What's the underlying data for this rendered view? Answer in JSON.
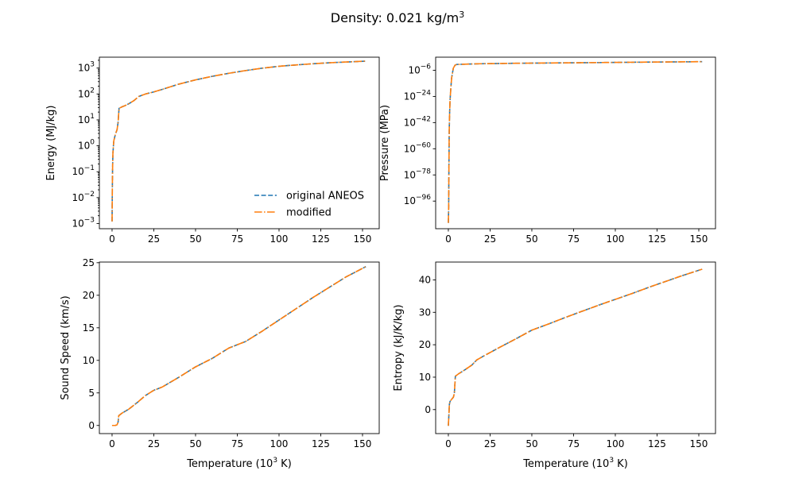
{
  "figure": {
    "title": "Density: 0.021 kg/m",
    "title_sup": "3"
  },
  "colors": {
    "original": "#1f77b4",
    "modified": "#ff7f0e"
  },
  "legend": {
    "placement": "lower-right",
    "entries": [
      "original ANEOS",
      "modified"
    ]
  },
  "chart_data": [
    {
      "type": "line",
      "id": "energy",
      "ylabel": "Energy (MJ/kg)",
      "xlabel": "",
      "yscale": "log",
      "xlim": [
        -7.6,
        160
      ],
      "ylim_log10": [
        -3.2,
        3.42
      ],
      "xticks": [
        0,
        25,
        50,
        75,
        100,
        125,
        150
      ],
      "yticks_exp": [
        -3,
        -2,
        -1,
        0,
        1,
        2,
        3
      ],
      "tick_base": "10",
      "series": [
        {
          "name": "original ANEOS",
          "style": "dashed",
          "x": [
            0.01,
            0.15,
            0.3,
            0.5,
            1.0,
            2.0,
            3.0,
            3.6,
            4.2,
            6,
            8,
            10,
            13,
            16,
            20,
            25,
            30,
            35,
            40,
            50,
            60,
            70,
            80,
            90,
            100,
            110,
            120,
            130,
            140,
            152
          ],
          "y": [
            0.0012,
            0.02,
            0.12,
            0.5,
            1.5,
            2.8,
            4.2,
            8,
            28,
            32,
            36,
            42,
            55,
            80,
            100,
            120,
            150,
            190,
            240,
            350,
            480,
            630,
            800,
            990,
            1170,
            1320,
            1460,
            1600,
            1710,
            1850
          ]
        },
        {
          "name": "modified",
          "style": "dashdot",
          "x": [
            0.01,
            0.15,
            0.3,
            0.5,
            1.0,
            2.0,
            3.0,
            3.6,
            4.2,
            6,
            8,
            10,
            13,
            16,
            20,
            25,
            30,
            35,
            40,
            50,
            60,
            70,
            80,
            90,
            100,
            110,
            120,
            130,
            140,
            152
          ],
          "y": [
            0.0012,
            0.02,
            0.12,
            0.5,
            1.5,
            2.8,
            4.2,
            8,
            28,
            32,
            36,
            42,
            55,
            80,
            100,
            120,
            150,
            190,
            240,
            350,
            480,
            630,
            800,
            990,
            1170,
            1320,
            1460,
            1600,
            1710,
            1850
          ]
        }
      ]
    },
    {
      "type": "line",
      "id": "pressure",
      "ylabel": "Pressure (MPa)",
      "xlabel": "",
      "yscale": "log",
      "xlim": [
        -7.6,
        160
      ],
      "ylim_log10": [
        -115,
        3
      ],
      "xticks": [
        0,
        25,
        50,
        75,
        100,
        125,
        150
      ],
      "yticks_exp": [
        -96,
        -78,
        -60,
        -42,
        -24,
        -6
      ],
      "tick_base": "10",
      "series": [
        {
          "name": "original ANEOS",
          "style": "dashed",
          "x_log": [
            0.0,
            0.2,
            0.3,
            0.5,
            0.7,
            1.0,
            1.5,
            2.0,
            3.0,
            4.0,
            5.0,
            10,
            20,
            40,
            60,
            80,
            100,
            120,
            140,
            152
          ],
          "y_log10": [
            -111,
            -100,
            -80,
            -50,
            -38,
            -27,
            -18,
            -11,
            -4.5,
            -2.5,
            -2.0,
            -1.8,
            -1.5,
            -1.2,
            -1.0,
            -0.8,
            -0.6,
            -0.4,
            -0.2,
            -0.1
          ]
        },
        {
          "name": "modified",
          "style": "dashdot",
          "x_log": [
            0.0,
            0.2,
            0.3,
            0.5,
            0.7,
            1.0,
            1.5,
            2.0,
            3.0,
            4.0,
            5.0,
            10,
            20,
            40,
            60,
            80,
            100,
            120,
            140,
            152
          ],
          "y_log10": [
            -111,
            -100,
            -80,
            -50,
            -38,
            -27,
            -18,
            -11,
            -4.5,
            -2.5,
            -2.0,
            -1.8,
            -1.5,
            -1.2,
            -1.0,
            -0.8,
            -0.6,
            -0.4,
            -0.2,
            -0.1
          ]
        }
      ]
    },
    {
      "type": "line",
      "id": "sound",
      "ylabel": "Sound Speed (km/s)",
      "xlabel": "Temperature (10",
      "xlabel_sup": "3",
      "xlabel_tail": " K)",
      "yscale": "linear",
      "xlim": [
        -7.6,
        160
      ],
      "ylim": [
        -1.25,
        25.1
      ],
      "xticks": [
        0,
        25,
        50,
        75,
        100,
        125,
        150
      ],
      "yticks": [
        0,
        5,
        10,
        15,
        20,
        25
      ],
      "series": [
        {
          "name": "original ANEOS",
          "style": "dashed",
          "x": [
            0,
            1,
            2,
            3,
            3.6,
            4,
            6,
            10,
            15,
            20,
            25,
            30,
            40,
            50,
            60,
            70,
            80,
            90,
            100,
            110,
            120,
            130,
            140,
            152
          ],
          "y": [
            0,
            0,
            0,
            0.1,
            0.5,
            1.5,
            1.9,
            2.5,
            3.5,
            4.6,
            5.4,
            5.9,
            7.4,
            9.0,
            10.3,
            11.9,
            12.9,
            14.5,
            16.2,
            17.9,
            19.6,
            21.2,
            22.8,
            24.4
          ]
        },
        {
          "name": "modified",
          "style": "dashdot",
          "x": [
            0,
            1,
            2,
            3,
            3.6,
            4,
            6,
            10,
            15,
            20,
            25,
            30,
            40,
            50,
            60,
            70,
            80,
            90,
            100,
            110,
            120,
            130,
            140,
            152
          ],
          "y": [
            0,
            0,
            0,
            0.1,
            0.5,
            1.5,
            1.9,
            2.5,
            3.5,
            4.6,
            5.4,
            5.9,
            7.4,
            9.0,
            10.3,
            11.9,
            12.9,
            14.5,
            16.2,
            17.9,
            19.6,
            21.2,
            22.8,
            24.4
          ]
        }
      ]
    },
    {
      "type": "line",
      "id": "entropy",
      "ylabel": "Entropy (kJ/K/kg)",
      "xlabel": "Temperature (10",
      "xlabel_sup": "3",
      "xlabel_tail": " K)",
      "yscale": "linear",
      "xlim": [
        -7.6,
        160
      ],
      "ylim": [
        -7.4,
        45.5
      ],
      "xticks": [
        0,
        25,
        50,
        75,
        100,
        125,
        150
      ],
      "yticks": [
        0,
        10,
        20,
        30,
        40
      ],
      "series": [
        {
          "name": "original ANEOS",
          "style": "dashed",
          "x": [
            0,
            0.3,
            0.6,
            1,
            2,
            3,
            3.6,
            4.2,
            6,
            10,
            14,
            17,
            20,
            25,
            30,
            40,
            50,
            60,
            70,
            80,
            90,
            100,
            110,
            120,
            130,
            140,
            152
          ],
          "y": [
            -5,
            -2,
            1.5,
            2.5,
            3.2,
            3.8,
            5,
            10.3,
            11,
            12.3,
            13.7,
            15.3,
            16.2,
            17.6,
            19,
            21.7,
            24.5,
            26.4,
            28.4,
            30.3,
            32.2,
            34,
            35.8,
            37.7,
            39.5,
            41.3,
            43.3
          ]
        },
        {
          "name": "modified",
          "style": "dashdot",
          "x": [
            0,
            0.3,
            0.6,
            1,
            2,
            3,
            3.6,
            4.2,
            6,
            10,
            14,
            17,
            20,
            25,
            30,
            40,
            50,
            60,
            70,
            80,
            90,
            100,
            110,
            120,
            130,
            140,
            152
          ],
          "y": [
            -5,
            -2,
            1.5,
            2.5,
            3.2,
            3.8,
            5,
            10.3,
            11,
            12.3,
            13.7,
            15.3,
            16.2,
            17.6,
            19,
            21.7,
            24.5,
            26.4,
            28.4,
            30.3,
            32.2,
            34,
            35.8,
            37.7,
            39.5,
            41.3,
            43.3
          ]
        }
      ]
    }
  ]
}
